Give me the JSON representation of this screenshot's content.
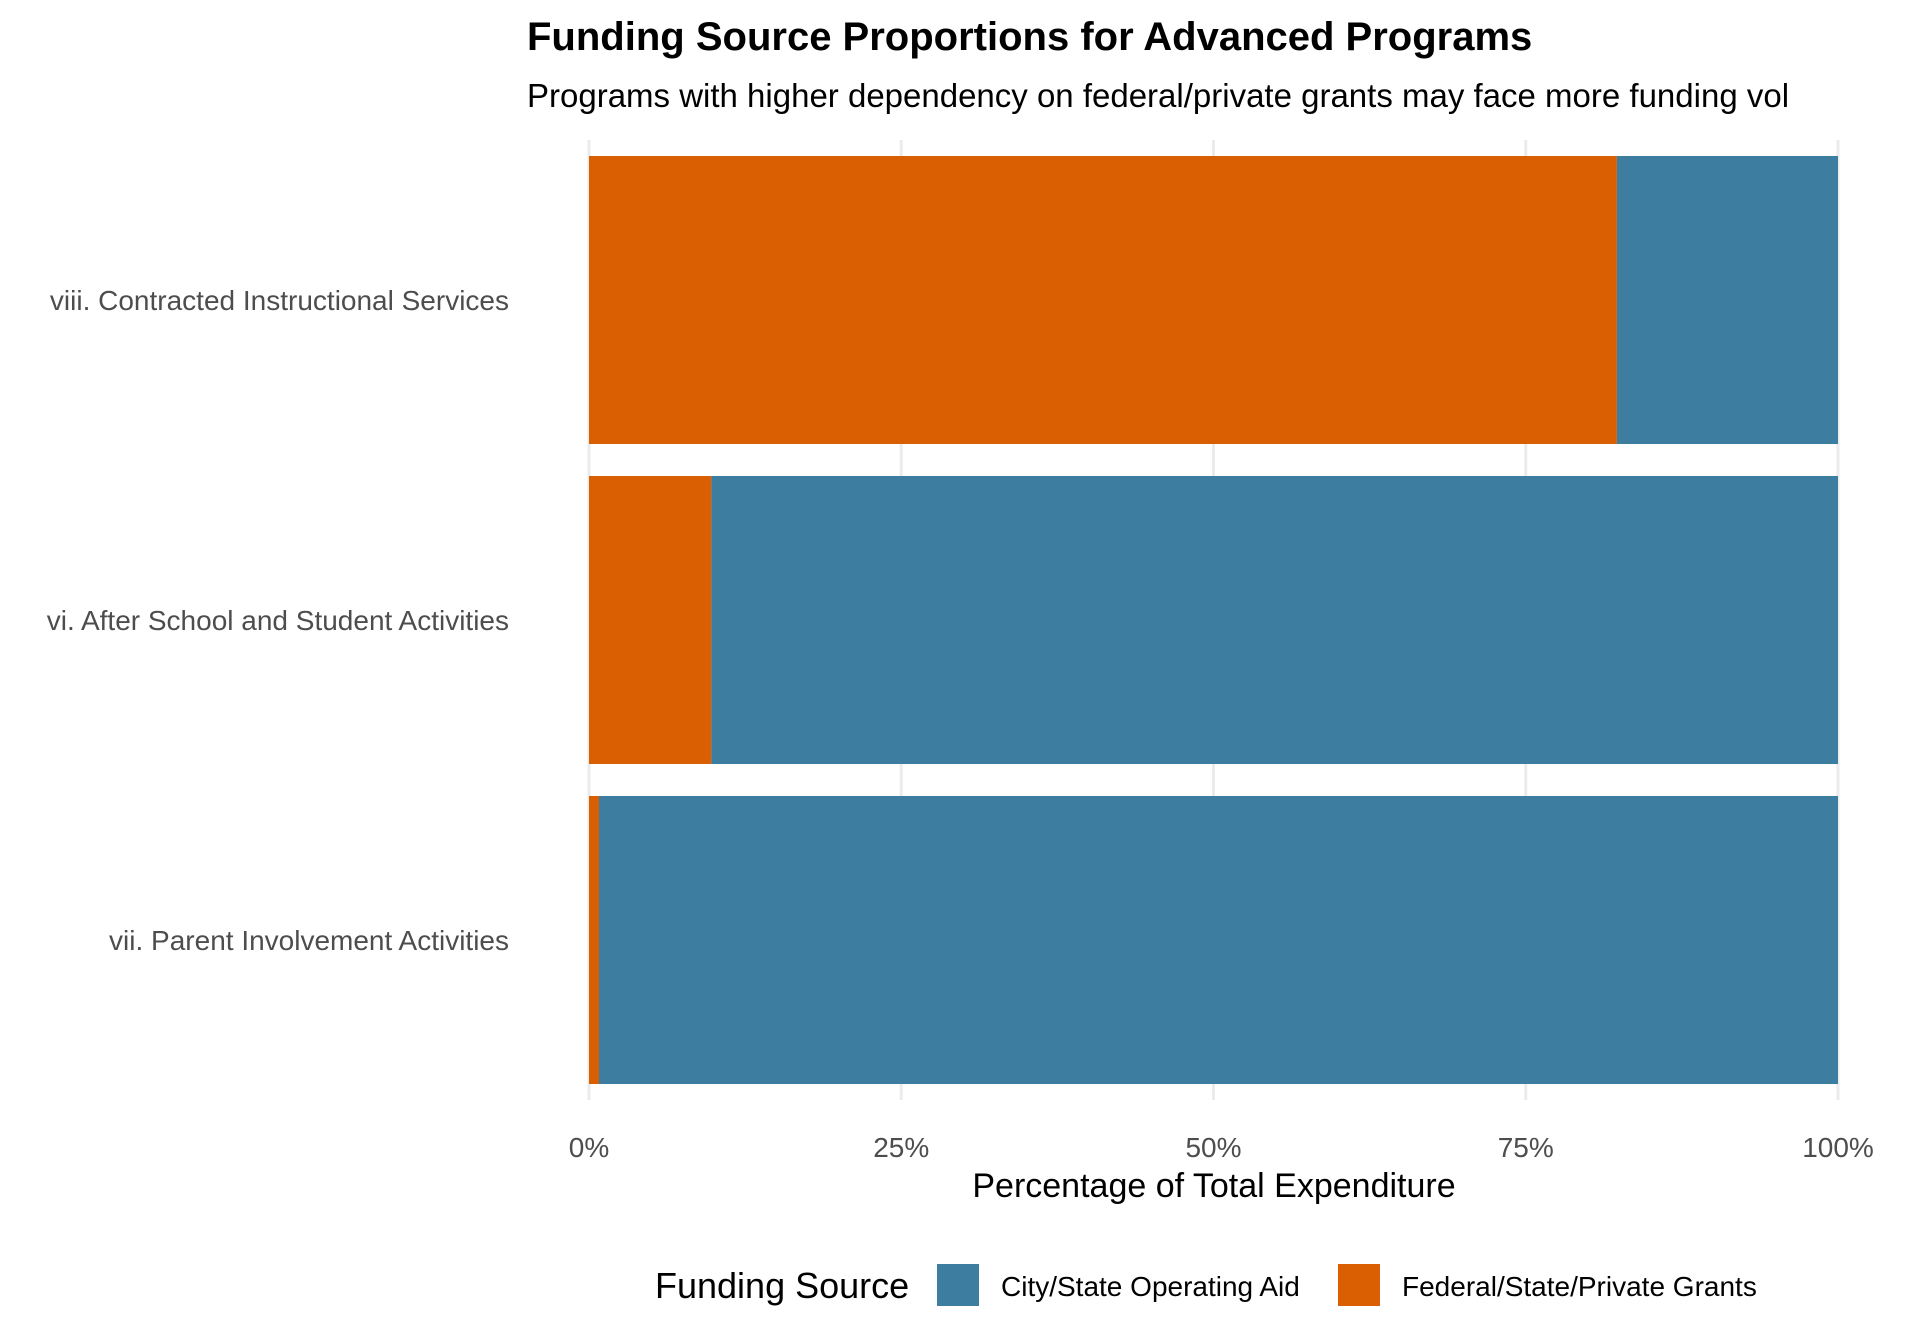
{
  "chart_data": {
    "type": "bar",
    "orientation": "horizontal",
    "stacked": "percent",
    "title": "Funding Source Proportions for Advanced Programs",
    "subtitle": "Programs with higher dependency on federal/private grants may face more funding vol",
    "xlabel": "Percentage of Total Expenditure",
    "ylabel": "",
    "xlim": [
      0,
      100
    ],
    "x_ticks": [
      "0%",
      "25%",
      "50%",
      "75%",
      "100%"
    ],
    "x_tick_values": [
      0,
      25,
      50,
      75,
      100
    ],
    "categories": [
      "viii. Contracted Instructional Services",
      "vi. After School and Student Activities",
      "vii. Parent Involvement Activities"
    ],
    "series": [
      {
        "name": "Federal/State/Private Grants",
        "color": "#d95f02",
        "values": [
          82.3,
          9.8,
          0.8
        ]
      },
      {
        "name": "City/State Operating Aid",
        "color": "#3d7ea0",
        "values": [
          17.7,
          90.2,
          99.2
        ]
      }
    ],
    "legend": {
      "title": "Funding Source",
      "position": "bottom",
      "entries": [
        {
          "label": "City/State Operating Aid",
          "color": "#3d7ea0"
        },
        {
          "label": "Federal/State/Private Grants",
          "color": "#d95f02"
        }
      ]
    },
    "grid": true
  }
}
